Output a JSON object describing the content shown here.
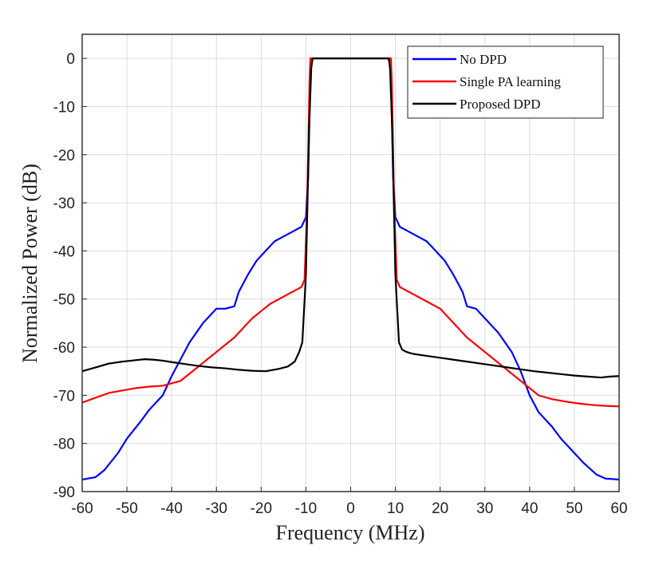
{
  "chart_data": {
    "type": "line",
    "title": "",
    "xlabel": "Frequency (MHz)",
    "ylabel": "Normalized Power (dB)",
    "xlim": [
      -60,
      60
    ],
    "ylim": [
      -90,
      5
    ],
    "xticks": [
      -60,
      -50,
      -40,
      -30,
      -20,
      -10,
      0,
      10,
      20,
      30,
      40,
      50,
      60
    ],
    "yticks": [
      0,
      -10,
      -20,
      -30,
      -40,
      -50,
      -60,
      -70,
      -80,
      -90
    ],
    "xtick_labels": [
      "-60",
      "-50",
      "-40",
      "-30",
      "-20",
      "-10",
      "0",
      "10",
      "20",
      "30",
      "40",
      "50",
      "60"
    ],
    "ytick_labels": [
      "0",
      "-10",
      "-20",
      "-30",
      "-40",
      "-50",
      "-60",
      "-70",
      "-80",
      "-90"
    ],
    "grid": true,
    "legend_position": "top-right",
    "series": [
      {
        "name": "No DPD",
        "color": "#0000ff",
        "x": [
          -60,
          -57,
          -55,
          -52,
          -50,
          -47,
          -45,
          -42,
          -40,
          -38,
          -36,
          -33,
          -30,
          -28,
          -26,
          -25,
          -23,
          -21,
          -19,
          -17,
          -15,
          -13,
          -11,
          -10,
          -9.5,
          -9,
          -8.8,
          8.8,
          9,
          9.5,
          10,
          11,
          13,
          15,
          17,
          19,
          21,
          23,
          25,
          26,
          28,
          30,
          33,
          36,
          38,
          40,
          42,
          45,
          47,
          50,
          52,
          55,
          57,
          60
        ],
        "values": [
          -87.5,
          -87,
          -85.5,
          -82,
          -79,
          -75.5,
          -73,
          -70,
          -66,
          -62.5,
          -59,
          -55,
          -52,
          -52,
          -51.5,
          -48.5,
          -45,
          -42,
          -40,
          -38,
          -37,
          -36,
          -35,
          -33,
          -25,
          -3,
          0,
          0,
          -3,
          -25,
          -33,
          -35,
          -36,
          -37,
          -38,
          -40,
          -42,
          -45,
          -48.5,
          -51.5,
          -52,
          -54,
          -57,
          -61,
          -65,
          -70,
          -73.5,
          -76.5,
          -79,
          -82,
          -84,
          -86.5,
          -87.3,
          -87.5
        ]
      },
      {
        "name": "Single PA learning",
        "color": "#ff0000",
        "x": [
          -60,
          -57,
          -54,
          -51,
          -48,
          -45,
          -42,
          -40,
          -38,
          -36,
          -34,
          -32,
          -30,
          -28,
          -26,
          -24,
          -22,
          -20,
          -18,
          -16,
          -14,
          -12,
          -11,
          -10.3,
          -9.7,
          -9.2,
          -9,
          9,
          9.2,
          9.7,
          10.3,
          11,
          12,
          14,
          16,
          18,
          20,
          22,
          24,
          26,
          28,
          30,
          32,
          34,
          36,
          38,
          40,
          42,
          45,
          48,
          51,
          54,
          57,
          60
        ],
        "values": [
          -71.5,
          -70.5,
          -69.5,
          -69,
          -68.5,
          -68.2,
          -68,
          -67.5,
          -67,
          -65.5,
          -64,
          -62.5,
          -61,
          -59.5,
          -58,
          -56,
          -54,
          -52.5,
          -51,
          -50,
          -49,
          -48,
          -47.5,
          -46,
          -30,
          -5,
          0,
          0,
          -5,
          -30,
          -46,
          -47.5,
          -48,
          -49,
          -50,
          -51,
          -52,
          -54,
          -56,
          -58,
          -59.5,
          -61,
          -62.5,
          -64,
          -65.5,
          -67,
          -68.5,
          -70,
          -70.8,
          -71.3,
          -71.7,
          -72,
          -72.2,
          -72.3
        ]
      },
      {
        "name": "Proposed DPD",
        "color": "#000000",
        "x": [
          -60,
          -57,
          -54,
          -51,
          -48,
          -46,
          -44,
          -42,
          -40,
          -37,
          -34,
          -31,
          -28,
          -25,
          -22,
          -19,
          -16,
          -14,
          -12.5,
          -11.5,
          -10.8,
          -10,
          -9.3,
          -8.8,
          -8.5,
          8.5,
          8.8,
          9.3,
          10,
          10.8,
          11.5,
          12.5,
          14,
          17,
          20,
          23,
          26,
          29,
          32,
          35,
          38,
          41,
          44,
          47,
          50,
          53,
          56,
          58,
          60
        ],
        "values": [
          -65,
          -64.2,
          -63.4,
          -63,
          -62.7,
          -62.5,
          -62.6,
          -62.8,
          -63.1,
          -63.5,
          -63.9,
          -64.2,
          -64.4,
          -64.7,
          -64.9,
          -65,
          -64.5,
          -64,
          -63,
          -61,
          -59,
          -45,
          -15,
          -2,
          0,
          0,
          -2,
          -15,
          -45,
          -59,
          -60.5,
          -61,
          -61.4,
          -61.8,
          -62.2,
          -62.6,
          -63,
          -63.4,
          -63.8,
          -64.2,
          -64.6,
          -65,
          -65.3,
          -65.6,
          -65.9,
          -66.1,
          -66.3,
          -66.1,
          -66
        ]
      }
    ]
  }
}
